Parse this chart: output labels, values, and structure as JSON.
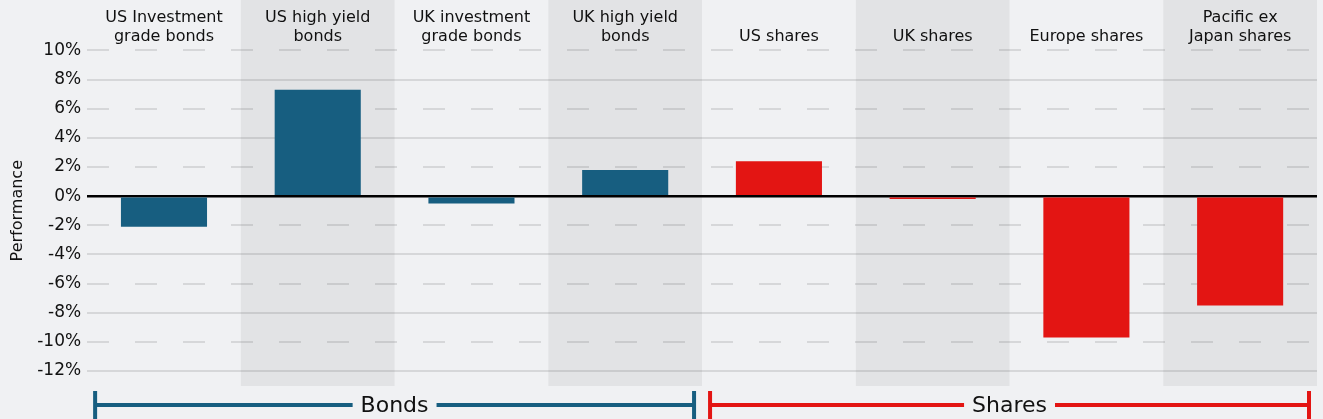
{
  "chart_data": {
    "type": "bar",
    "ylabel": "Performance",
    "categories": [
      "US Investment grade bonds",
      "US high yield bonds",
      "UK investment grade bonds",
      "UK high yield bonds",
      "US shares",
      "UK shares",
      "Europe shares",
      "Pacific ex Japan shares"
    ],
    "values": [
      -2.1,
      7.3,
      -0.5,
      1.8,
      2.4,
      -0.2,
      -9.7,
      -7.5
    ],
    "colors": [
      "#175e80",
      "#175e80",
      "#175e80",
      "#175e80",
      "#e31513",
      "#e31513",
      "#e31513",
      "#e31513"
    ],
    "ylim": [
      -12,
      10
    ],
    "yticks": [
      {
        "value": 10,
        "label": "10%"
      },
      {
        "value": 8,
        "label": "8%"
      },
      {
        "value": 6,
        "label": "6%"
      },
      {
        "value": 4,
        "label": "4%"
      },
      {
        "value": 2,
        "label": "2%"
      },
      {
        "value": 0,
        "label": "0%"
      },
      {
        "value": -2,
        "label": "-2%"
      },
      {
        "value": -4,
        "label": "-4%"
      },
      {
        "value": -6,
        "label": "-6%"
      },
      {
        "value": -8,
        "label": "-8%"
      },
      {
        "value": -10,
        "label": "-10%"
      },
      {
        "value": -12,
        "label": "-12%"
      }
    ],
    "grid": "y",
    "annotations": [
      "Bonds",
      "Shares"
    ]
  }
}
